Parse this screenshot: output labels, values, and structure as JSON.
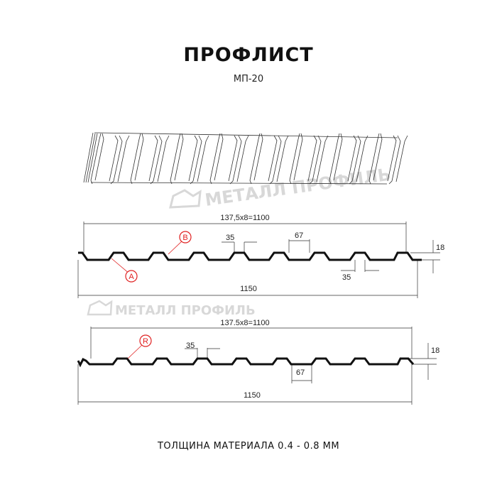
{
  "title": "ПРОФЛИСТ",
  "subtitle": "МП-20",
  "footer": "ТОЛЩИНА МАТЕРИАЛА 0.4 - 0.8 ММ",
  "watermark": "МЕТАЛЛ ПРОФИЛЬ",
  "profile_a": {
    "pitch_label": "137,5x8=1100",
    "width_label": "1150",
    "crest_label": "35",
    "crest_label_2": "35",
    "valley_label": "67",
    "height_label": "18",
    "marker_a": "A",
    "marker_b": "B"
  },
  "profile_r": {
    "pitch_label": "137.5x8=1100",
    "width_label": "1150",
    "crest_label": "35",
    "valley_label": "67",
    "height_label": "18",
    "marker_r": "R"
  },
  "colors": {
    "marker": "#e02020",
    "line": "#111111",
    "watermark": "#d8d8d8"
  }
}
